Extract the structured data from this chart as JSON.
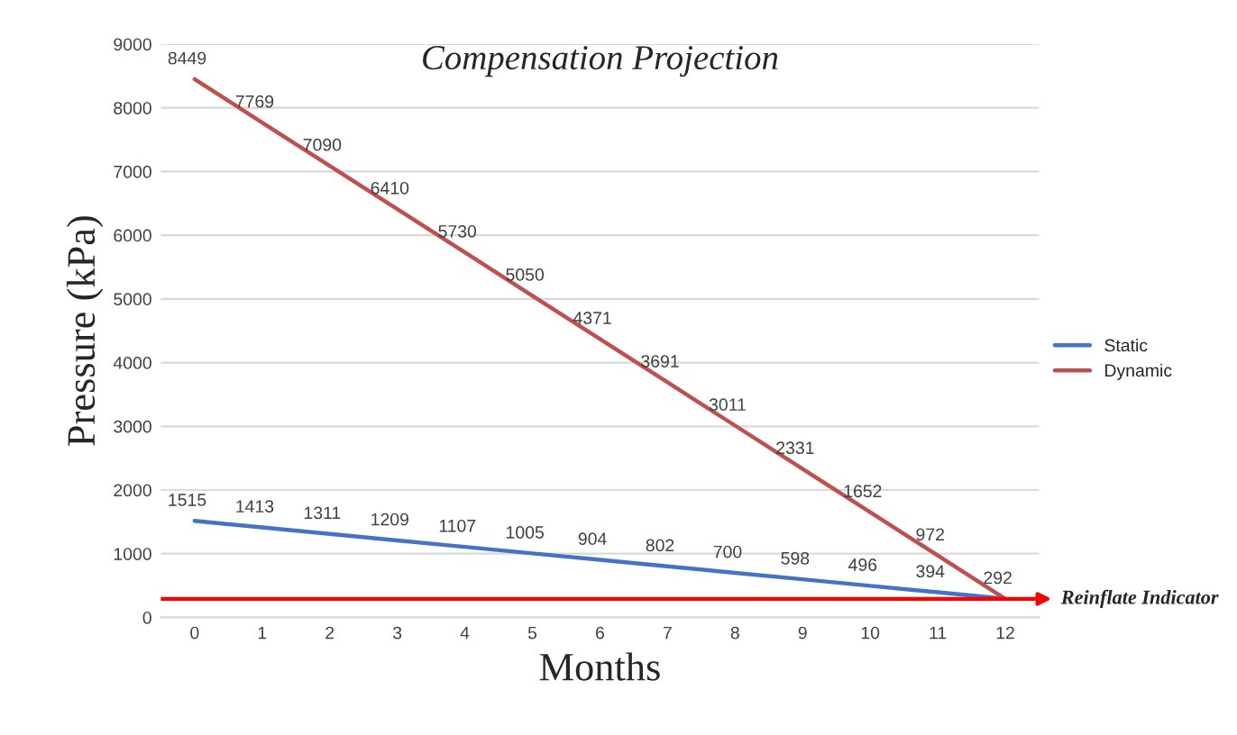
{
  "chart_data": {
    "type": "line",
    "title": "Compensation Projection",
    "xlabel": "Months",
    "ylabel": "Pressure (kPa)",
    "categories": [
      "0",
      "1",
      "2",
      "3",
      "4",
      "5",
      "6",
      "7",
      "8",
      "9",
      "10",
      "11",
      "12"
    ],
    "series": [
      {
        "name": "Static",
        "color": "#4472c4",
        "values": [
          1515,
          1413,
          1311,
          1209,
          1107,
          1005,
          904,
          802,
          700,
          598,
          496,
          394,
          292
        ],
        "value_labels": [
          "1515",
          "1413",
          "1311",
          "1209",
          "1107",
          "1005",
          "904",
          "802",
          "700",
          "598",
          "496",
          "394",
          "292"
        ]
      },
      {
        "name": "Dynamic",
        "color": "#c0504d",
        "values": [
          8449,
          7769,
          7090,
          6410,
          5730,
          5050,
          4371,
          3691,
          3011,
          2331,
          1652,
          972,
          292
        ],
        "value_labels": [
          "8449",
          "7769",
          "7090",
          "6410",
          "5730",
          "5050",
          "4371",
          "3691",
          "3011",
          "2331",
          "1652",
          "972",
          null
        ]
      }
    ],
    "ylim": [
      0,
      9000
    ],
    "yticks": [
      0,
      1000,
      2000,
      3000,
      4000,
      5000,
      6000,
      7000,
      8000,
      9000
    ],
    "grid": "y",
    "legend": "right",
    "marker": "none",
    "line_style": "solid",
    "ref_lines": [
      {
        "axis": "y",
        "value": 290,
        "label": "Reinflate Indicator",
        "color": "#ff0000"
      }
    ]
  }
}
